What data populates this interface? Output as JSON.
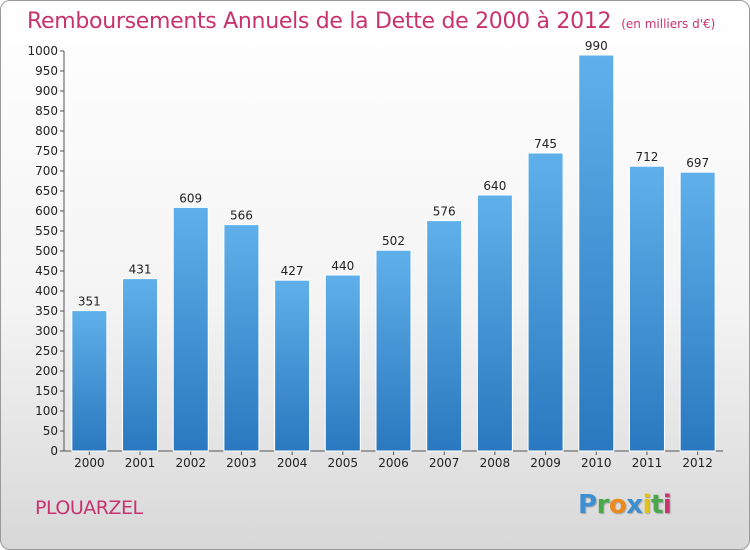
{
  "chart_data": {
    "type": "bar",
    "title": "Remboursements Annuels de la Dette de 2000 à 2012",
    "subtitle": "(en milliers d'€)",
    "categories": [
      "2000",
      "2001",
      "2002",
      "2003",
      "2004",
      "2005",
      "2006",
      "2007",
      "2008",
      "2009",
      "2010",
      "2011",
      "2012"
    ],
    "values": [
      351,
      431,
      609,
      566,
      427,
      440,
      502,
      576,
      640,
      745,
      990,
      712,
      697
    ],
    "ylim": [
      0,
      1000
    ],
    "ystep": 50,
    "grid": false,
    "bar_color": "#3e93d6"
  },
  "footer": {
    "commune": "PLOUARZEL",
    "logo_letters": [
      {
        "ch": "P",
        "color": "#3c8fd0"
      },
      {
        "ch": "r",
        "color": "#4aa84a"
      },
      {
        "ch": "o",
        "color": "#e98b1e"
      },
      {
        "ch": "x",
        "color": "#3c8fd0"
      },
      {
        "ch": "i",
        "color": "#e0c21c"
      },
      {
        "ch": "t",
        "color": "#4aa84a"
      },
      {
        "ch": "i",
        "color": "#c8336d"
      }
    ]
  }
}
